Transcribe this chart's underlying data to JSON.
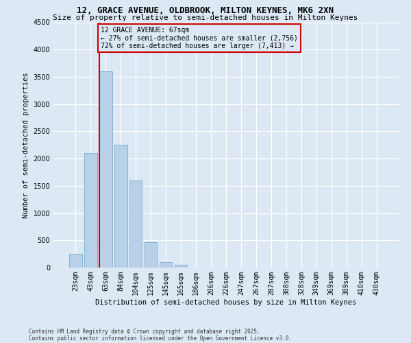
{
  "title_line1": "12, GRACE AVENUE, OLDBROOK, MILTON KEYNES, MK6 2XN",
  "title_line2": "Size of property relative to semi-detached houses in Milton Keynes",
  "xlabel": "Distribution of semi-detached houses by size in Milton Keynes",
  "ylabel": "Number of semi-detached properties",
  "categories": [
    "23sqm",
    "43sqm",
    "63sqm",
    "84sqm",
    "104sqm",
    "125sqm",
    "145sqm",
    "165sqm",
    "186sqm",
    "206sqm",
    "226sqm",
    "247sqm",
    "267sqm",
    "287sqm",
    "308sqm",
    "328sqm",
    "349sqm",
    "369sqm",
    "389sqm",
    "410sqm",
    "430sqm"
  ],
  "values": [
    250,
    2100,
    3600,
    2250,
    1600,
    460,
    100,
    55,
    0,
    0,
    0,
    0,
    0,
    0,
    0,
    0,
    0,
    0,
    0,
    0,
    0
  ],
  "bar_color": "#b8d0e8",
  "bar_edge_color": "#7aaad0",
  "property_line_x": 2.0,
  "property_size": "67sqm",
  "pct_smaller": 27,
  "count_smaller": "2,756",
  "pct_larger": 72,
  "count_larger": "7,413",
  "annotation_box_color": "#cc0000",
  "background_color": "#dce9f5",
  "grid_color": "#ffffff",
  "footer_text": "Contains HM Land Registry data © Crown copyright and database right 2025.\nContains public sector information licensed under the Open Government Licence v3.0.",
  "ylim_max": 4500,
  "ytick_step": 500,
  "title1_fontsize": 9,
  "title2_fontsize": 8,
  "axis_label_fontsize": 7.5,
  "tick_fontsize": 7,
  "footer_fontsize": 5.5,
  "annot_fontsize": 7
}
